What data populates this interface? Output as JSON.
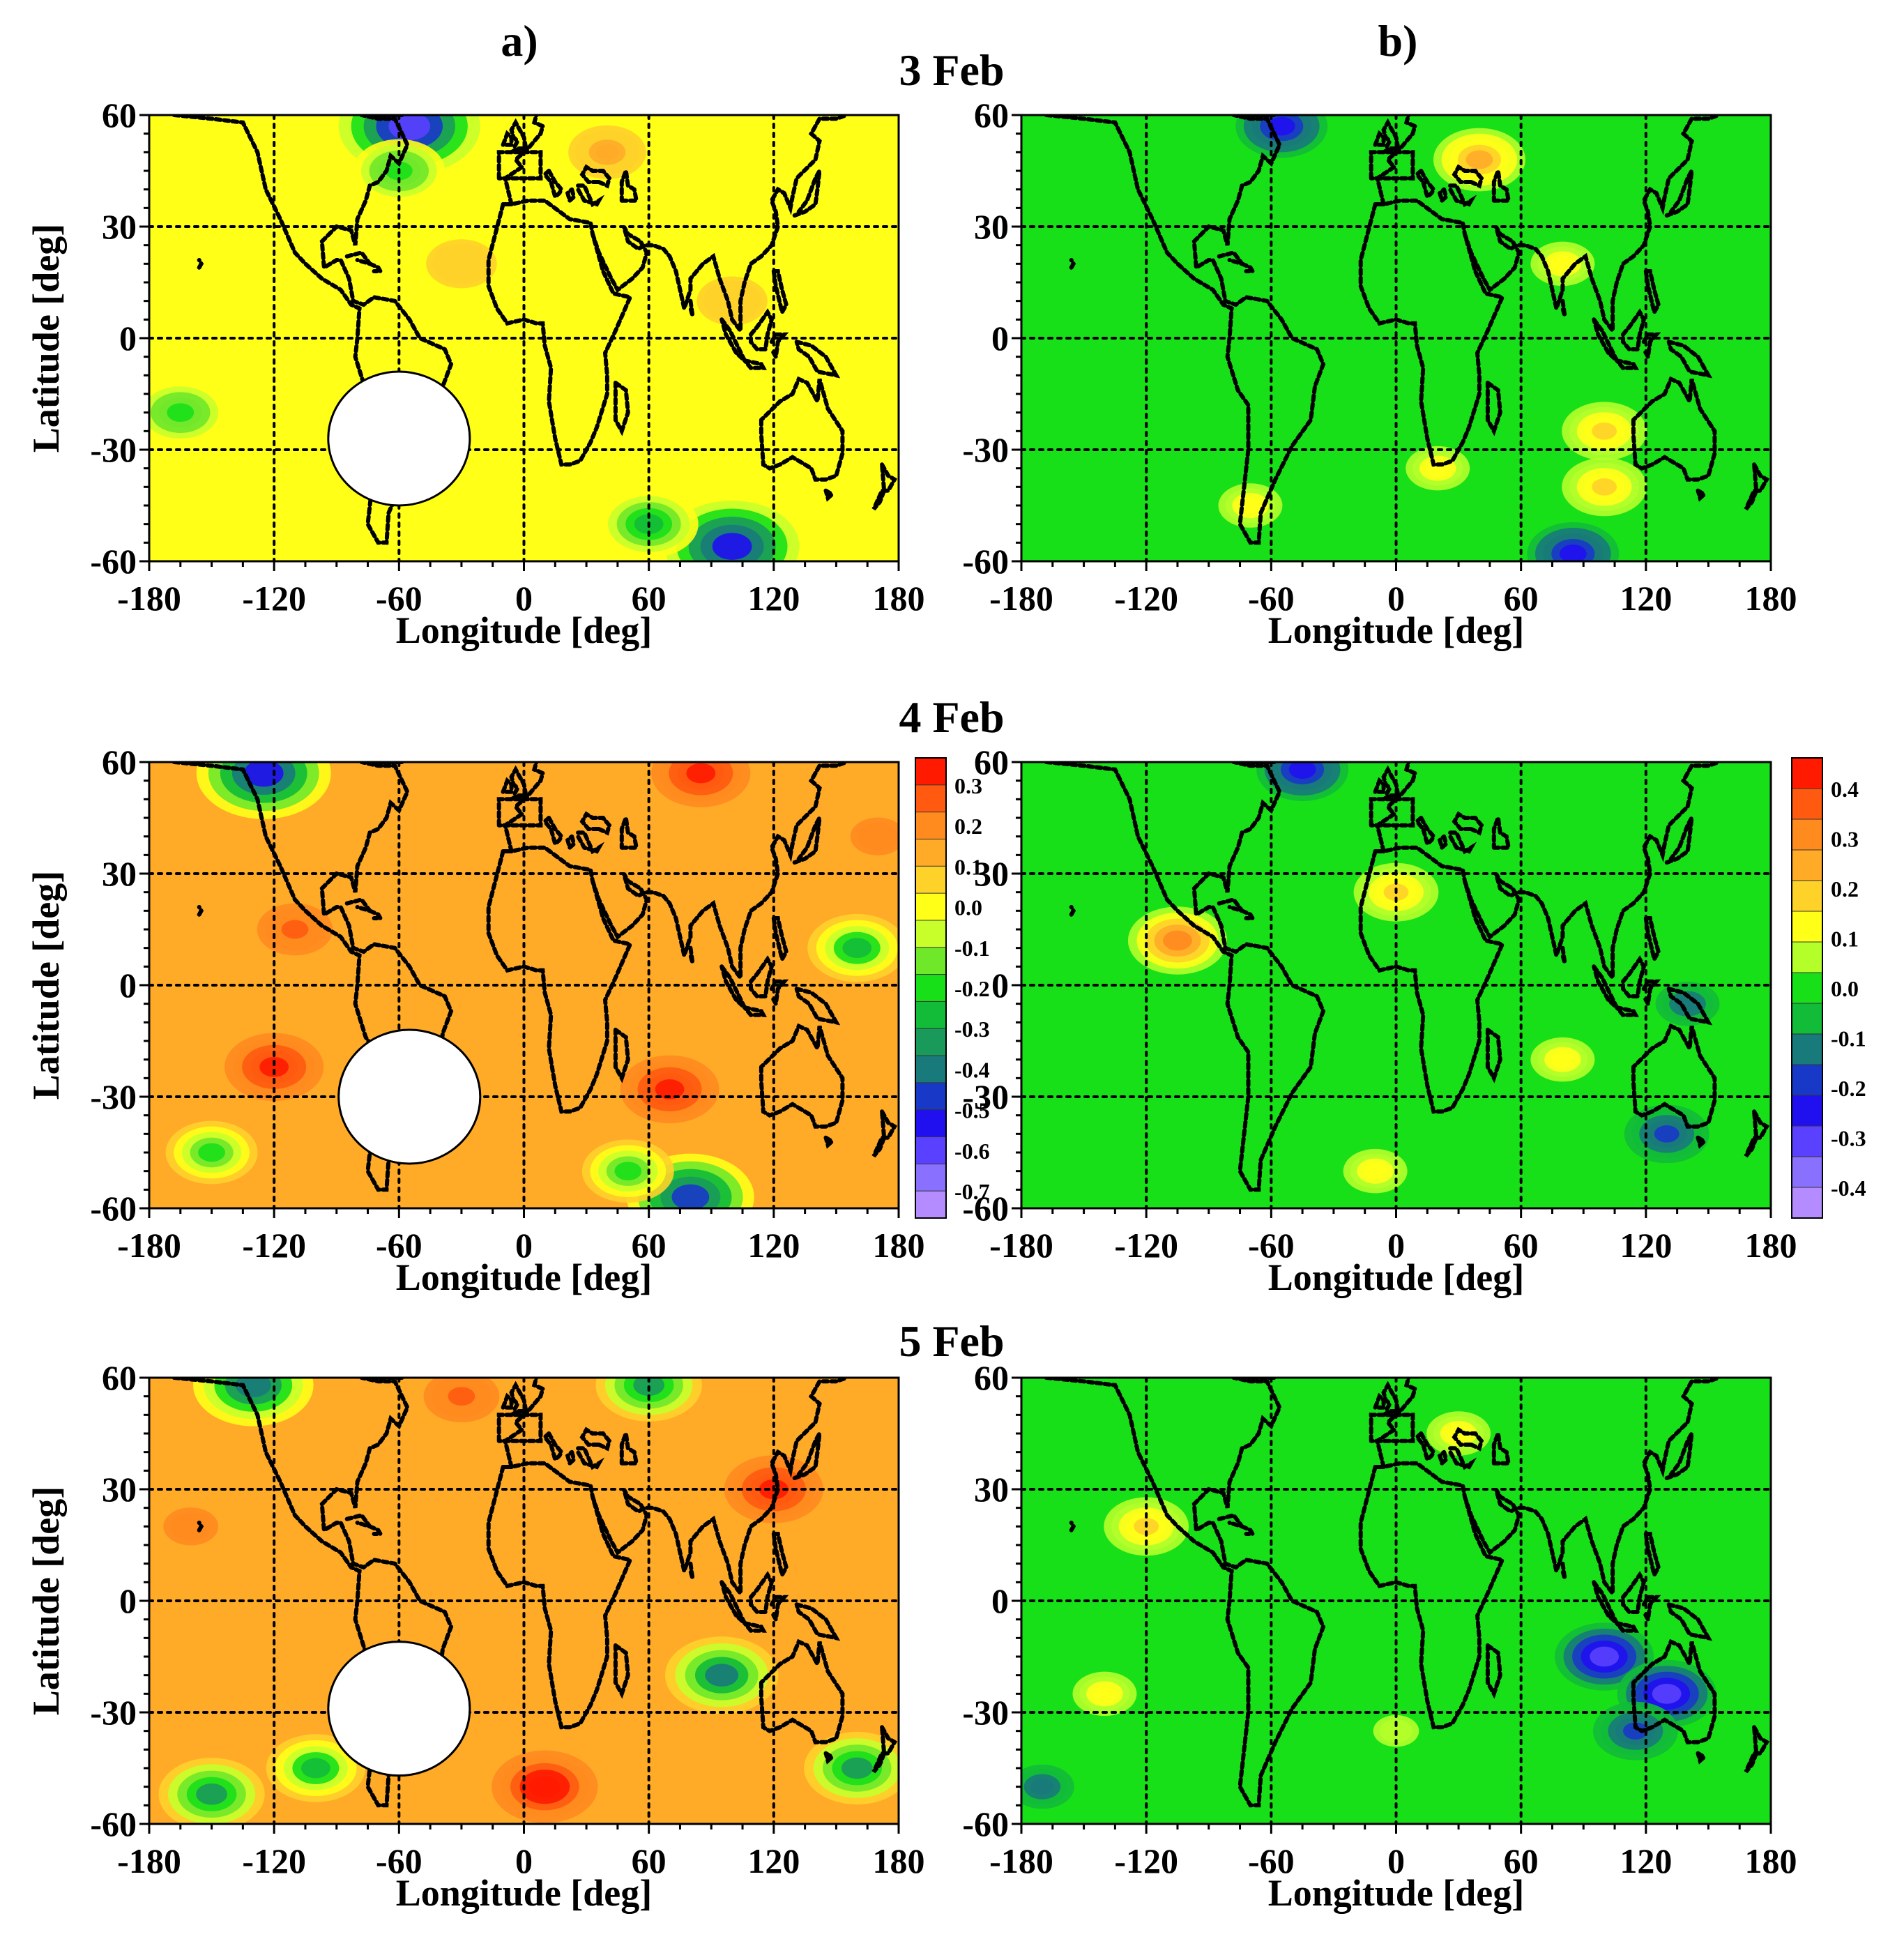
{
  "col_labels": [
    "a)",
    "b)"
  ],
  "days": [
    "3 Feb",
    "4 Feb",
    "5 Feb"
  ],
  "axes": {
    "xlabel": "Longitude [deg]",
    "ylabel": "Latitude [deg]",
    "xlim": [
      -180,
      180
    ],
    "ylim": [
      -60,
      60
    ],
    "xticks": [
      -180,
      -120,
      -60,
      0,
      60,
      120,
      180
    ],
    "yticks": [
      60,
      30,
      0,
      -30,
      -60
    ],
    "x_gridlines": [
      -120,
      -60,
      0,
      60,
      120
    ],
    "y_gridlines": [
      30,
      0,
      -30
    ]
  },
  "colorbars": [
    {
      "name": "a",
      "ticks": [
        "0.3",
        "0.2",
        "0.1",
        "0.0",
        "-0.1",
        "-0.2",
        "-0.3",
        "-0.4",
        "-0.5",
        "-0.6",
        "-0.7"
      ],
      "colors": [
        "#ff1a00",
        "#ff5a10",
        "#ff8a1e",
        "#ffab28",
        "#ffd22a",
        "#ffff18",
        "#c8ff2a",
        "#70e82a",
        "#18e018",
        "#12bb38",
        "#1a9a5a",
        "#187a7a",
        "#1838c8",
        "#2010f0",
        "#5a40ff",
        "#8a70ff",
        "#b48cff"
      ]
    },
    {
      "name": "b",
      "ticks": [
        "0.4",
        "0.3",
        "0.2",
        "0.1",
        "0.0",
        "-0.1",
        "-0.2",
        "-0.3",
        "-0.4"
      ],
      "colors": [
        "#ff1a00",
        "#ff5a10",
        "#ff8a1e",
        "#ffab28",
        "#ffd22a",
        "#ffff18",
        "#b4ff2a",
        "#18e018",
        "#12bb38",
        "#187a7a",
        "#1838c8",
        "#2010f0",
        "#5a40ff",
        "#8a70ff",
        "#b48cff"
      ]
    }
  ],
  "chart_data": [
    {
      "type": "heatmap",
      "panel": "a",
      "day": "3 Feb",
      "xlim": [
        -180,
        180
      ],
      "ylim": [
        -60,
        60
      ],
      "base_value": 0.0,
      "blobs": [
        {
          "lon": -55,
          "lat": 57,
          "value": -0.55
        },
        {
          "lon": 100,
          "lat": -56,
          "value": -0.5
        },
        {
          "lon": 60,
          "lat": -50,
          "value": -0.25
        },
        {
          "lon": -60,
          "lat": 45,
          "value": -0.2
        },
        {
          "lon": -165,
          "lat": -20,
          "value": -0.2
        },
        {
          "lon": 40,
          "lat": 50,
          "value": 0.1
        },
        {
          "lon": -30,
          "lat": 20,
          "value": 0.05
        },
        {
          "lon": 100,
          "lat": 10,
          "value": 0.05
        }
      ],
      "ellipse": {
        "lon": -60,
        "lat": -27
      }
    },
    {
      "type": "heatmap",
      "panel": "b",
      "day": "3 Feb",
      "xlim": [
        -180,
        180
      ],
      "ylim": [
        -60,
        60
      ],
      "base_value": 0.0,
      "blobs": [
        {
          "lon": -55,
          "lat": 57,
          "value": -0.2
        },
        {
          "lon": 85,
          "lat": -58,
          "value": -0.2
        },
        {
          "lon": 40,
          "lat": 48,
          "value": 0.2
        },
        {
          "lon": 100,
          "lat": -25,
          "value": 0.15
        },
        {
          "lon": 100,
          "lat": -40,
          "value": 0.15
        },
        {
          "lon": 20,
          "lat": -35,
          "value": 0.1
        },
        {
          "lon": -70,
          "lat": -45,
          "value": 0.1
        },
        {
          "lon": 80,
          "lat": 20,
          "value": 0.1
        }
      ],
      "ellipse": null
    },
    {
      "type": "heatmap",
      "panel": "a",
      "day": "4 Feb",
      "xlim": [
        -180,
        180
      ],
      "ylim": [
        -60,
        60
      ],
      "base_value": 0.1,
      "blobs": [
        {
          "lon": -125,
          "lat": 57,
          "value": -0.5
        },
        {
          "lon": 80,
          "lat": -57,
          "value": -0.45
        },
        {
          "lon": 160,
          "lat": 10,
          "value": -0.25
        },
        {
          "lon": -150,
          "lat": -45,
          "value": -0.2
        },
        {
          "lon": 50,
          "lat": -50,
          "value": -0.2
        },
        {
          "lon": 85,
          "lat": 57,
          "value": 0.25
        },
        {
          "lon": 70,
          "lat": -28,
          "value": 0.25
        },
        {
          "lon": -120,
          "lat": -22,
          "value": 0.25
        },
        {
          "lon": -110,
          "lat": 15,
          "value": 0.2
        },
        {
          "lon": 170,
          "lat": 40,
          "value": 0.15
        }
      ],
      "ellipse": {
        "lon": -55,
        "lat": -30
      }
    },
    {
      "type": "heatmap",
      "panel": "b",
      "day": "4 Feb",
      "xlim": [
        -180,
        180
      ],
      "ylim": [
        -60,
        60
      ],
      "base_value": 0.0,
      "blobs": [
        {
          "lon": -45,
          "lat": 58,
          "value": -0.2
        },
        {
          "lon": 130,
          "lat": -40,
          "value": -0.15
        },
        {
          "lon": 140,
          "lat": -5,
          "value": -0.1
        },
        {
          "lon": -105,
          "lat": 12,
          "value": 0.25
        },
        {
          "lon": 0,
          "lat": 25,
          "value": 0.15
        },
        {
          "lon": 80,
          "lat": -20,
          "value": 0.1
        },
        {
          "lon": -10,
          "lat": -50,
          "value": 0.1
        }
      ],
      "ellipse": null
    },
    {
      "type": "heatmap",
      "panel": "a",
      "day": "5 Feb",
      "xlim": [
        -180,
        180
      ],
      "ylim": [
        -60,
        60
      ],
      "base_value": 0.1,
      "blobs": [
        {
          "lon": 95,
          "lat": -20,
          "value": -0.35
        },
        {
          "lon": 160,
          "lat": -45,
          "value": -0.3
        },
        {
          "lon": -150,
          "lat": -52,
          "value": -0.3
        },
        {
          "lon": -100,
          "lat": -45,
          "value": -0.25
        },
        {
          "lon": 60,
          "lat": 58,
          "value": -0.3
        },
        {
          "lon": -130,
          "lat": 58,
          "value": -0.4
        },
        {
          "lon": 10,
          "lat": -50,
          "value": 0.3
        },
        {
          "lon": -30,
          "lat": 55,
          "value": 0.2
        },
        {
          "lon": 120,
          "lat": 30,
          "value": 0.25
        },
        {
          "lon": -160,
          "lat": 20,
          "value": 0.15
        }
      ],
      "ellipse": {
        "lon": -60,
        "lat": -29
      }
    },
    {
      "type": "heatmap",
      "panel": "b",
      "day": "5 Feb",
      "xlim": [
        -180,
        180
      ],
      "ylim": [
        -60,
        60
      ],
      "base_value": 0.0,
      "blobs": [
        {
          "lon": 100,
          "lat": -15,
          "value": -0.25
        },
        {
          "lon": 130,
          "lat": -25,
          "value": -0.25
        },
        {
          "lon": 115,
          "lat": -35,
          "value": -0.15
        },
        {
          "lon": -170,
          "lat": -50,
          "value": -0.1
        },
        {
          "lon": -120,
          "lat": 20,
          "value": 0.15
        },
        {
          "lon": -140,
          "lat": -25,
          "value": 0.1
        },
        {
          "lon": 30,
          "lat": 45,
          "value": 0.1
        },
        {
          "lon": 0,
          "lat": -35,
          "value": 0.05
        }
      ],
      "ellipse": null
    }
  ]
}
